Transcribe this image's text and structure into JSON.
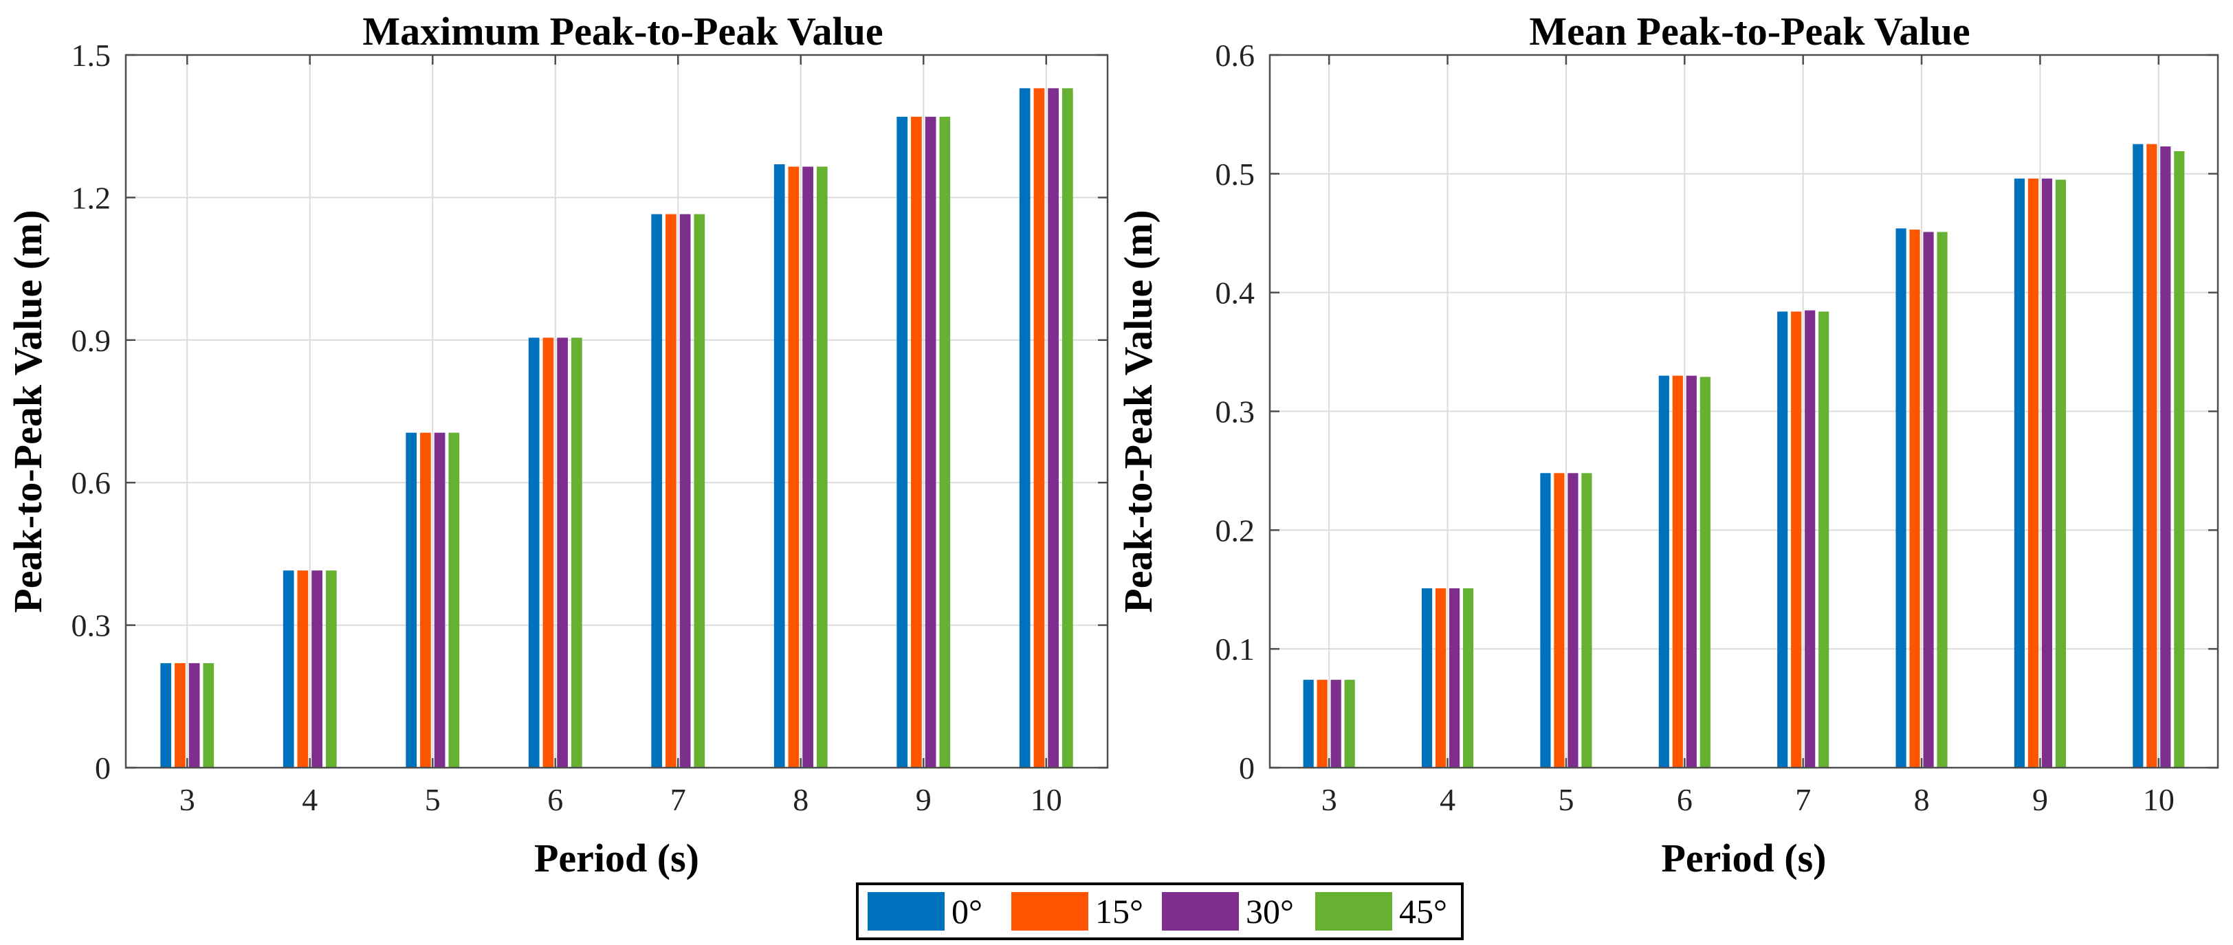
{
  "legend": {
    "entries": [
      {
        "label": "0°",
        "color": "#0072BD"
      },
      {
        "label": "15°",
        "color": "#FF5500"
      },
      {
        "label": "30°",
        "color": "#7E2F8E"
      },
      {
        "label": "45°",
        "color": "#66B032"
      }
    ]
  },
  "chart_data": [
    {
      "type": "bar",
      "title": "Maximum Peak-to-Peak Value",
      "xlabel": "Period (s)",
      "ylabel": "Peak-to-Peak Value (m)",
      "categories": [
        "3",
        "4",
        "5",
        "6",
        "7",
        "8",
        "9",
        "10"
      ],
      "ylim": [
        0,
        1.5
      ],
      "yticks": [
        "0",
        "0.3",
        "0.6",
        "0.9",
        "1.2",
        "1.5"
      ],
      "yticks_values": [
        0,
        0.3,
        0.6,
        0.9,
        1.2,
        1.5
      ],
      "grid": true,
      "series": [
        {
          "name": "0°",
          "values": [
            0.22,
            0.415,
            0.705,
            0.905,
            1.165,
            1.27,
            1.37,
            1.43
          ]
        },
        {
          "name": "15°",
          "values": [
            0.22,
            0.415,
            0.705,
            0.905,
            1.165,
            1.265,
            1.37,
            1.43
          ]
        },
        {
          "name": "30°",
          "values": [
            0.22,
            0.415,
            0.705,
            0.905,
            1.165,
            1.265,
            1.37,
            1.43
          ]
        },
        {
          "name": "45°",
          "values": [
            0.22,
            0.415,
            0.705,
            0.905,
            1.165,
            1.265,
            1.37,
            1.43
          ]
        }
      ]
    },
    {
      "type": "bar",
      "title": "Mean Peak-to-Peak Value",
      "xlabel": "Period (s)",
      "ylabel": "Peak-to-Peak Value (m)",
      "categories": [
        "3",
        "4",
        "5",
        "6",
        "7",
        "8",
        "9",
        "10"
      ],
      "ylim": [
        0,
        0.6
      ],
      "yticks": [
        "0",
        "0.1",
        "0.2",
        "0.3",
        "0.4",
        "0.5",
        "0.6"
      ],
      "yticks_values": [
        0,
        0.1,
        0.2,
        0.3,
        0.4,
        0.5,
        0.6
      ],
      "grid": true,
      "series": [
        {
          "name": "0°",
          "values": [
            0.074,
            0.151,
            0.248,
            0.33,
            0.384,
            0.454,
            0.496,
            0.525
          ]
        },
        {
          "name": "15°",
          "values": [
            0.074,
            0.151,
            0.248,
            0.33,
            0.384,
            0.453,
            0.496,
            0.525
          ]
        },
        {
          "name": "30°",
          "values": [
            0.074,
            0.151,
            0.248,
            0.33,
            0.385,
            0.451,
            0.496,
            0.523
          ]
        },
        {
          "name": "45°",
          "values": [
            0.074,
            0.151,
            0.248,
            0.329,
            0.384,
            0.451,
            0.495,
            0.519
          ]
        }
      ]
    }
  ]
}
